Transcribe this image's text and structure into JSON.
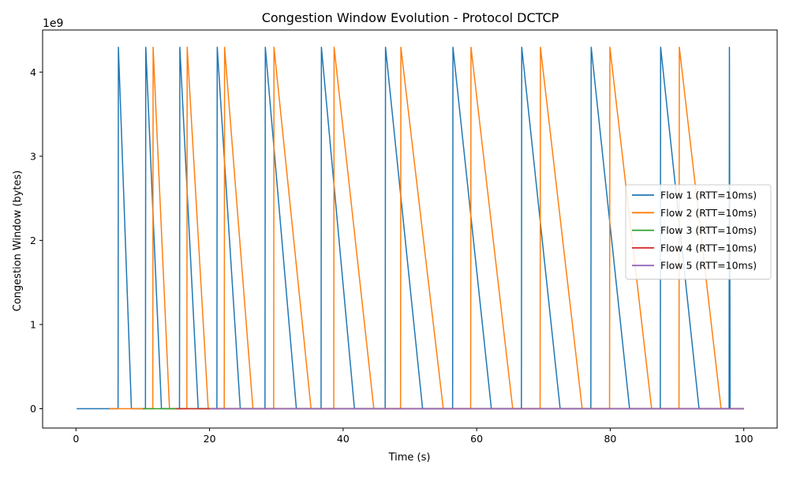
{
  "chart_data": {
    "type": "line",
    "title": "Congestion Window Evolution - Protocol DCTCP",
    "xlabel": "Time (s)",
    "ylabel": "Congestion Window (bytes)",
    "y_offset_label": "1e9",
    "y_scale": 1000000000,
    "xlim": [
      -5,
      105
    ],
    "ylim": [
      -230000000,
      4500000000
    ],
    "x_ticks": [
      0,
      20,
      40,
      60,
      80,
      100
    ],
    "y_ticks": [
      0,
      1000000000,
      2000000000,
      3000000000,
      4000000000
    ],
    "x_tick_labels": [
      "0",
      "20",
      "40",
      "60",
      "80",
      "100"
    ],
    "y_tick_labels": [
      "0",
      "1",
      "2",
      "3",
      "4"
    ],
    "grid": false,
    "legend_position": "center-right",
    "series": [
      {
        "name": "Flow 1 (RTT=10ms)",
        "color": "#1f77b4",
        "points": [
          [
            0.1,
            0
          ],
          [
            6.3,
            0
          ],
          [
            6.35,
            4294967295
          ],
          [
            8.3,
            0
          ],
          [
            10.4,
            0
          ],
          [
            10.45,
            4294967295
          ],
          [
            12.8,
            0
          ],
          [
            15.5,
            0
          ],
          [
            15.55,
            4294967295
          ],
          [
            18.3,
            0
          ],
          [
            21.1,
            0
          ],
          [
            21.15,
            4294967295
          ],
          [
            24.6,
            0
          ],
          [
            28.3,
            0
          ],
          [
            28.35,
            4294967295
          ],
          [
            33.0,
            0
          ],
          [
            36.7,
            0
          ],
          [
            36.75,
            4294967295
          ],
          [
            41.7,
            0
          ],
          [
            46.3,
            0
          ],
          [
            46.35,
            4294967295
          ],
          [
            51.9,
            0
          ],
          [
            56.4,
            0
          ],
          [
            56.45,
            4294967295
          ],
          [
            62.2,
            0
          ],
          [
            66.7,
            0
          ],
          [
            66.75,
            4294967295
          ],
          [
            72.5,
            0
          ],
          [
            77.1,
            0
          ],
          [
            77.15,
            4294967295
          ],
          [
            82.9,
            0
          ],
          [
            87.5,
            0
          ],
          [
            87.55,
            4294967295
          ],
          [
            93.3,
            0
          ],
          [
            97.8,
            0
          ],
          [
            97.85,
            4294967295
          ],
          [
            97.95,
            0
          ],
          [
            100,
            0
          ]
        ]
      },
      {
        "name": "Flow 2 (RTT=10ms)",
        "color": "#ff7f0e",
        "points": [
          [
            5.0,
            0
          ],
          [
            11.5,
            0
          ],
          [
            11.55,
            4294967295
          ],
          [
            14.0,
            0
          ],
          [
            16.6,
            0
          ],
          [
            16.65,
            4294967295
          ],
          [
            19.8,
            0
          ],
          [
            22.2,
            0
          ],
          [
            22.25,
            4294967295
          ],
          [
            26.5,
            0
          ],
          [
            29.6,
            0
          ],
          [
            29.65,
            4294967295
          ],
          [
            35.2,
            0
          ],
          [
            38.6,
            0
          ],
          [
            38.65,
            4294967295
          ],
          [
            44.6,
            0
          ],
          [
            48.6,
            0
          ],
          [
            48.65,
            4294967295
          ],
          [
            55.0,
            0
          ],
          [
            59.1,
            0
          ],
          [
            59.15,
            4294967295
          ],
          [
            65.4,
            0
          ],
          [
            69.5,
            0
          ],
          [
            69.55,
            4294967295
          ],
          [
            75.8,
            0
          ],
          [
            79.9,
            0
          ],
          [
            79.95,
            4294967295
          ],
          [
            86.2,
            0
          ],
          [
            90.3,
            0
          ],
          [
            90.35,
            4294967295
          ],
          [
            96.6,
            0
          ],
          [
            100,
            0
          ]
        ]
      },
      {
        "name": "Flow 3 (RTT=10ms)",
        "color": "#2ca02c",
        "points": [
          [
            10.0,
            0
          ],
          [
            100,
            0
          ]
        ]
      },
      {
        "name": "Flow 4 (RTT=10ms)",
        "color": "#d62728",
        "points": [
          [
            15.0,
            0
          ],
          [
            100,
            0
          ]
        ]
      },
      {
        "name": "Flow 5 (RTT=10ms)",
        "color": "#9467bd",
        "points": [
          [
            20.0,
            0
          ],
          [
            100,
            0
          ]
        ]
      }
    ]
  }
}
